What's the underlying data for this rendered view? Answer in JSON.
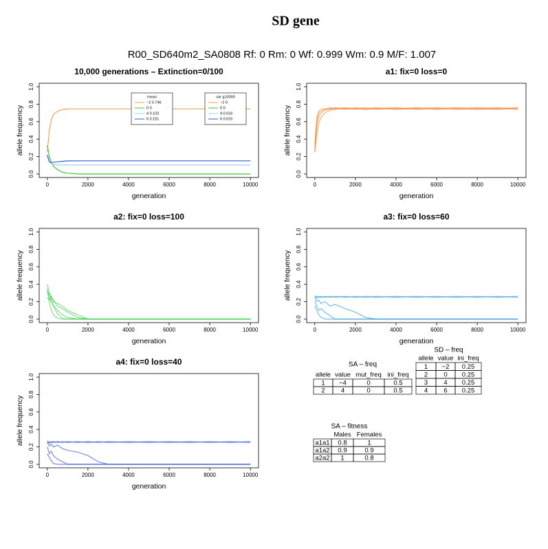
{
  "title": "SD gene",
  "subtitle": "R00_SD640m2_SA0808 Rf: 0 Rm: 0 Wf: 0.999 Wm: 0.9 M/F: 1.007",
  "chart_data": [
    {
      "type": "line",
      "title": "10,000 generations – Extinction=0/100",
      "xlabel": "generation",
      "ylabel": "allele frequency",
      "xlim": [
        -400,
        10400
      ],
      "ylim": [
        -0.04,
        1.04
      ],
      "xticks": [
        0,
        2000,
        4000,
        6000,
        8000,
        10000
      ],
      "yticks": [
        {
          "value": 0,
          "label": "0.0"
        },
        0.2,
        0.4,
        0.6,
        0.8,
        {
          "value": 1,
          "label": "1.0"
        }
      ],
      "line_opacity": 1,
      "x": [
        0,
        100,
        200,
        300,
        500,
        750,
        1000,
        1500,
        2000,
        2500,
        3000,
        4000,
        5000,
        6000,
        7000,
        8000,
        9000,
        10000
      ],
      "legend_title": "mean",
      "series": [
        {
          "name": "−2 0.746",
          "color": "#f5a25a",
          "values": [
            0.25,
            0.5,
            0.62,
            0.68,
            0.72,
            0.74,
            0.745,
            0.746,
            0.746,
            0.746,
            0.746,
            0.746,
            0.746,
            0.746,
            0.746,
            0.746,
            0.746,
            0.746
          ]
        },
        {
          "name": "0 0",
          "color": "#3cc43c",
          "values": [
            0.33,
            0.2,
            0.13,
            0.09,
            0.05,
            0.02,
            0.01,
            0,
            0,
            0,
            0,
            0,
            0,
            0,
            0,
            0,
            0,
            0
          ]
        },
        {
          "name": "4 0.103",
          "color": "#9fd4f0",
          "values": [
            0.2,
            0.14,
            0.12,
            0.11,
            0.105,
            0.103,
            0.103,
            0.103,
            0.103,
            0.103,
            0.103,
            0.103,
            0.103,
            0.103,
            0.103,
            0.103,
            0.103,
            0.103
          ]
        },
        {
          "name": "6 0.151",
          "color": "#2f5fd0",
          "values": [
            0.22,
            0.14,
            0.13,
            0.135,
            0.14,
            0.145,
            0.15,
            0.151,
            0.151,
            0.151,
            0.151,
            0.151,
            0.151,
            0.151,
            0.151,
            0.151,
            0.151,
            0.151
          ]
        }
      ],
      "legend2": {
        "title": "var g10000",
        "labels": [
          "−2 0",
          "0 0",
          "4 0.016",
          "6 0.015"
        ]
      }
    },
    {
      "type": "line",
      "title": "a1: fix=0 loss=0",
      "xlabel": "generation",
      "ylabel": "allele frequency",
      "xlim": [
        -400,
        10400
      ],
      "ylim": [
        -0.04,
        1.04
      ],
      "xticks": [
        0,
        2000,
        4000,
        6000,
        8000,
        10000
      ],
      "yticks": [
        {
          "value": 0,
          "label": "0.0"
        },
        0.2,
        0.4,
        0.6,
        0.8,
        {
          "value": 1,
          "label": "1.0"
        }
      ],
      "line_opacity": 0.6,
      "x": [
        0,
        100,
        200,
        300,
        500,
        750,
        1000,
        1500,
        2000,
        2500,
        3000,
        4000,
        5000,
        6000,
        7000,
        8000,
        9000,
        10000
      ],
      "series": [
        {
          "color": "#f57f29",
          "values": [
            0.25,
            0.55,
            0.66,
            0.7,
            0.73,
            0.75,
            0.74,
            0.76,
            0.75,
            0.74,
            0.75,
            0.76,
            0.74,
            0.75,
            0.76,
            0.75,
            0.74,
            0.75
          ]
        },
        {
          "color": "#f57f29",
          "values": [
            0.3,
            0.6,
            0.7,
            0.72,
            0.74,
            0.76,
            0.75,
            0.74,
            0.76,
            0.75,
            0.76,
            0.74,
            0.75,
            0.76,
            0.74,
            0.75,
            0.76,
            0.74
          ]
        },
        {
          "color": "#f57f29",
          "values": [
            0.25,
            0.45,
            0.58,
            0.65,
            0.7,
            0.73,
            0.75,
            0.75,
            0.74,
            0.76,
            0.74,
            0.75,
            0.76,
            0.74,
            0.75,
            0.74,
            0.75,
            0.76
          ]
        },
        {
          "color": "#f57f29",
          "values": [
            0.35,
            0.65,
            0.72,
            0.74,
            0.75,
            0.74,
            0.76,
            0.75,
            0.75,
            0.74,
            0.75,
            0.75,
            0.75,
            0.75,
            0.75,
            0.76,
            0.75,
            0.75
          ]
        }
      ]
    },
    {
      "type": "line",
      "title": "a2: fix=0 loss=100",
      "xlabel": "generation",
      "ylabel": "allele frequency",
      "xlim": [
        -400,
        10400
      ],
      "ylim": [
        -0.04,
        1.04
      ],
      "xticks": [
        0,
        2000,
        4000,
        6000,
        8000,
        10000
      ],
      "yticks": [
        {
          "value": 0,
          "label": "0.0"
        },
        0.2,
        0.4,
        0.6,
        0.8,
        {
          "value": 1,
          "label": "1.0"
        }
      ],
      "line_opacity": 0.6,
      "x": [
        0,
        100,
        200,
        300,
        500,
        750,
        1000,
        1500,
        2000,
        2500,
        3000,
        4000,
        5000,
        6000,
        7000,
        8000,
        9000,
        10000
      ],
      "series": [
        {
          "color": "#2ecc40",
          "values": [
            0.4,
            0.3,
            0.22,
            0.15,
            0.06,
            0.01,
            0,
            0,
            0,
            0,
            0,
            0,
            0,
            0,
            0,
            0,
            0,
            0
          ]
        },
        {
          "color": "#2ecc40",
          "values": [
            0.33,
            0.25,
            0.2,
            0.16,
            0.1,
            0.05,
            0.02,
            0,
            0,
            0,
            0,
            0,
            0,
            0,
            0,
            0,
            0,
            0
          ]
        },
        {
          "color": "#2ecc40",
          "values": [
            0.28,
            0.3,
            0.25,
            0.22,
            0.15,
            0.12,
            0.08,
            0.02,
            0,
            0,
            0,
            0,
            0,
            0,
            0,
            0,
            0,
            0
          ]
        },
        {
          "color": "#2ecc40",
          "values": [
            0.35,
            0.2,
            0.1,
            0.05,
            0.01,
            0,
            0,
            0,
            0,
            0,
            0,
            0,
            0,
            0,
            0,
            0,
            0,
            0
          ]
        },
        {
          "color": "#2ecc40",
          "values": [
            0.25,
            0.22,
            0.26,
            0.2,
            0.18,
            0.15,
            0.1,
            0.05,
            0,
            0,
            0,
            0,
            0,
            0,
            0,
            0,
            0,
            0
          ]
        }
      ]
    },
    {
      "type": "line",
      "title": "a3: fix=0 loss=60",
      "xlabel": "generation",
      "ylabel": "allele frequency",
      "xlim": [
        -400,
        10400
      ],
      "ylim": [
        -0.04,
        1.04
      ],
      "xticks": [
        0,
        2000,
        4000,
        6000,
        8000,
        10000
      ],
      "yticks": [
        {
          "value": 0,
          "label": "0.0"
        },
        0.2,
        0.4,
        0.6,
        0.8,
        {
          "value": 1,
          "label": "1.0"
        }
      ],
      "line_opacity": 0.6,
      "x": [
        0,
        100,
        200,
        300,
        500,
        750,
        1000,
        1500,
        2000,
        2500,
        3000,
        4000,
        5000,
        6000,
        7000,
        8000,
        9000,
        10000
      ],
      "series": [
        {
          "color": "#1e8fdc",
          "values": [
            0.25,
            0.26,
            0.25,
            0.26,
            0.25,
            0.26,
            0.25,
            0.26,
            0.25,
            0.26,
            0.25,
            0.26,
            0.25,
            0.26,
            0.25,
            0.26,
            0.25,
            0.26
          ]
        },
        {
          "color": "#1e8fdc",
          "values": [
            0.27,
            0.24,
            0.26,
            0.25,
            0.26,
            0.25,
            0.26,
            0.25,
            0.26,
            0.25,
            0.26,
            0.25,
            0.26,
            0.25,
            0.26,
            0.25,
            0.26,
            0.25
          ]
        },
        {
          "color": "#1e8fdc",
          "values": [
            0.2,
            0.15,
            0.1,
            0.12,
            0.08,
            0.04,
            0,
            0,
            0,
            0,
            0,
            0,
            0,
            0,
            0,
            0,
            0,
            0
          ]
        },
        {
          "color": "#1e8fdc",
          "values": [
            0.25,
            0.2,
            0.22,
            0.18,
            0.2,
            0.15,
            0.17,
            0.12,
            0.08,
            0.02,
            0,
            0,
            0,
            0,
            0,
            0,
            0,
            0
          ]
        },
        {
          "color": "#1e8fdc",
          "values": [
            0.15,
            0.1,
            0.05,
            0.02,
            0,
            0,
            0,
            0,
            0,
            0,
            0,
            0,
            0,
            0,
            0,
            0,
            0,
            0
          ]
        }
      ]
    },
    {
      "type": "line",
      "title": "a4: fix=0 loss=40",
      "xlabel": "generation",
      "ylabel": "allele frequency",
      "xlim": [
        -400,
        10400
      ],
      "ylim": [
        -0.04,
        1.04
      ],
      "xticks": [
        0,
        2000,
        4000,
        6000,
        8000,
        10000
      ],
      "yticks": [
        {
          "value": 0,
          "label": "0.0"
        },
        0.2,
        0.4,
        0.6,
        0.8,
        {
          "value": 1,
          "label": "1.0"
        }
      ],
      "line_opacity": 0.6,
      "x": [
        0,
        100,
        200,
        300,
        500,
        750,
        1000,
        1500,
        2000,
        2500,
        3000,
        4000,
        5000,
        6000,
        7000,
        8000,
        9000,
        10000
      ],
      "series": [
        {
          "color": "#1a3fd0",
          "values": [
            0.25,
            0.26,
            0.25,
            0.26,
            0.25,
            0.26,
            0.25,
            0.26,
            0.25,
            0.26,
            0.25,
            0.26,
            0.25,
            0.26,
            0.25,
            0.26,
            0.25,
            0.26
          ]
        },
        {
          "color": "#1a3fd0",
          "values": [
            0.27,
            0.24,
            0.26,
            0.25,
            0.26,
            0.25,
            0.26,
            0.25,
            0.26,
            0.25,
            0.26,
            0.25,
            0.26,
            0.25,
            0.26,
            0.25,
            0.26,
            0.25
          ]
        },
        {
          "color": "#1a3fd0",
          "values": [
            0.2,
            0.12,
            0.15,
            0.1,
            0.06,
            0.03,
            0,
            0,
            0,
            0,
            0,
            0,
            0,
            0,
            0,
            0,
            0,
            0
          ]
        },
        {
          "color": "#1a3fd0",
          "values": [
            0.25,
            0.21,
            0.23,
            0.2,
            0.22,
            0.18,
            0.16,
            0.14,
            0.1,
            0.03,
            0,
            0,
            0,
            0,
            0,
            0,
            0,
            0
          ]
        },
        {
          "color": "#1a3fd0",
          "values": [
            0.12,
            0.08,
            0.04,
            0.01,
            0,
            0,
            0,
            0,
            0,
            0,
            0,
            0,
            0,
            0,
            0,
            0,
            0,
            0
          ]
        }
      ]
    }
  ],
  "tables": [
    {
      "title": "SA – freq",
      "header": [
        "allele",
        "value",
        "mut_freq",
        "ini_freq"
      ],
      "rows": [
        [
          1,
          "−4",
          0,
          0.5
        ],
        [
          2,
          4,
          0,
          0.5
        ]
      ]
    },
    {
      "title": "SD – freq",
      "header": [
        "allele",
        "value",
        "ini_freq"
      ],
      "rows": [
        [
          1,
          "−2",
          0.25
        ],
        [
          2,
          0,
          0.25
        ],
        [
          3,
          4,
          0.25
        ],
        [
          4,
          6,
          0.25
        ]
      ]
    },
    {
      "title": "SA – fitness",
      "header": [
        "Males",
        "Females"
      ],
      "rows": [
        [
          "a1a1",
          0.8,
          1
        ],
        [
          "a1a2",
          0.9,
          0.9
        ],
        [
          "a2a2",
          1,
          0.8
        ]
      ]
    }
  ]
}
